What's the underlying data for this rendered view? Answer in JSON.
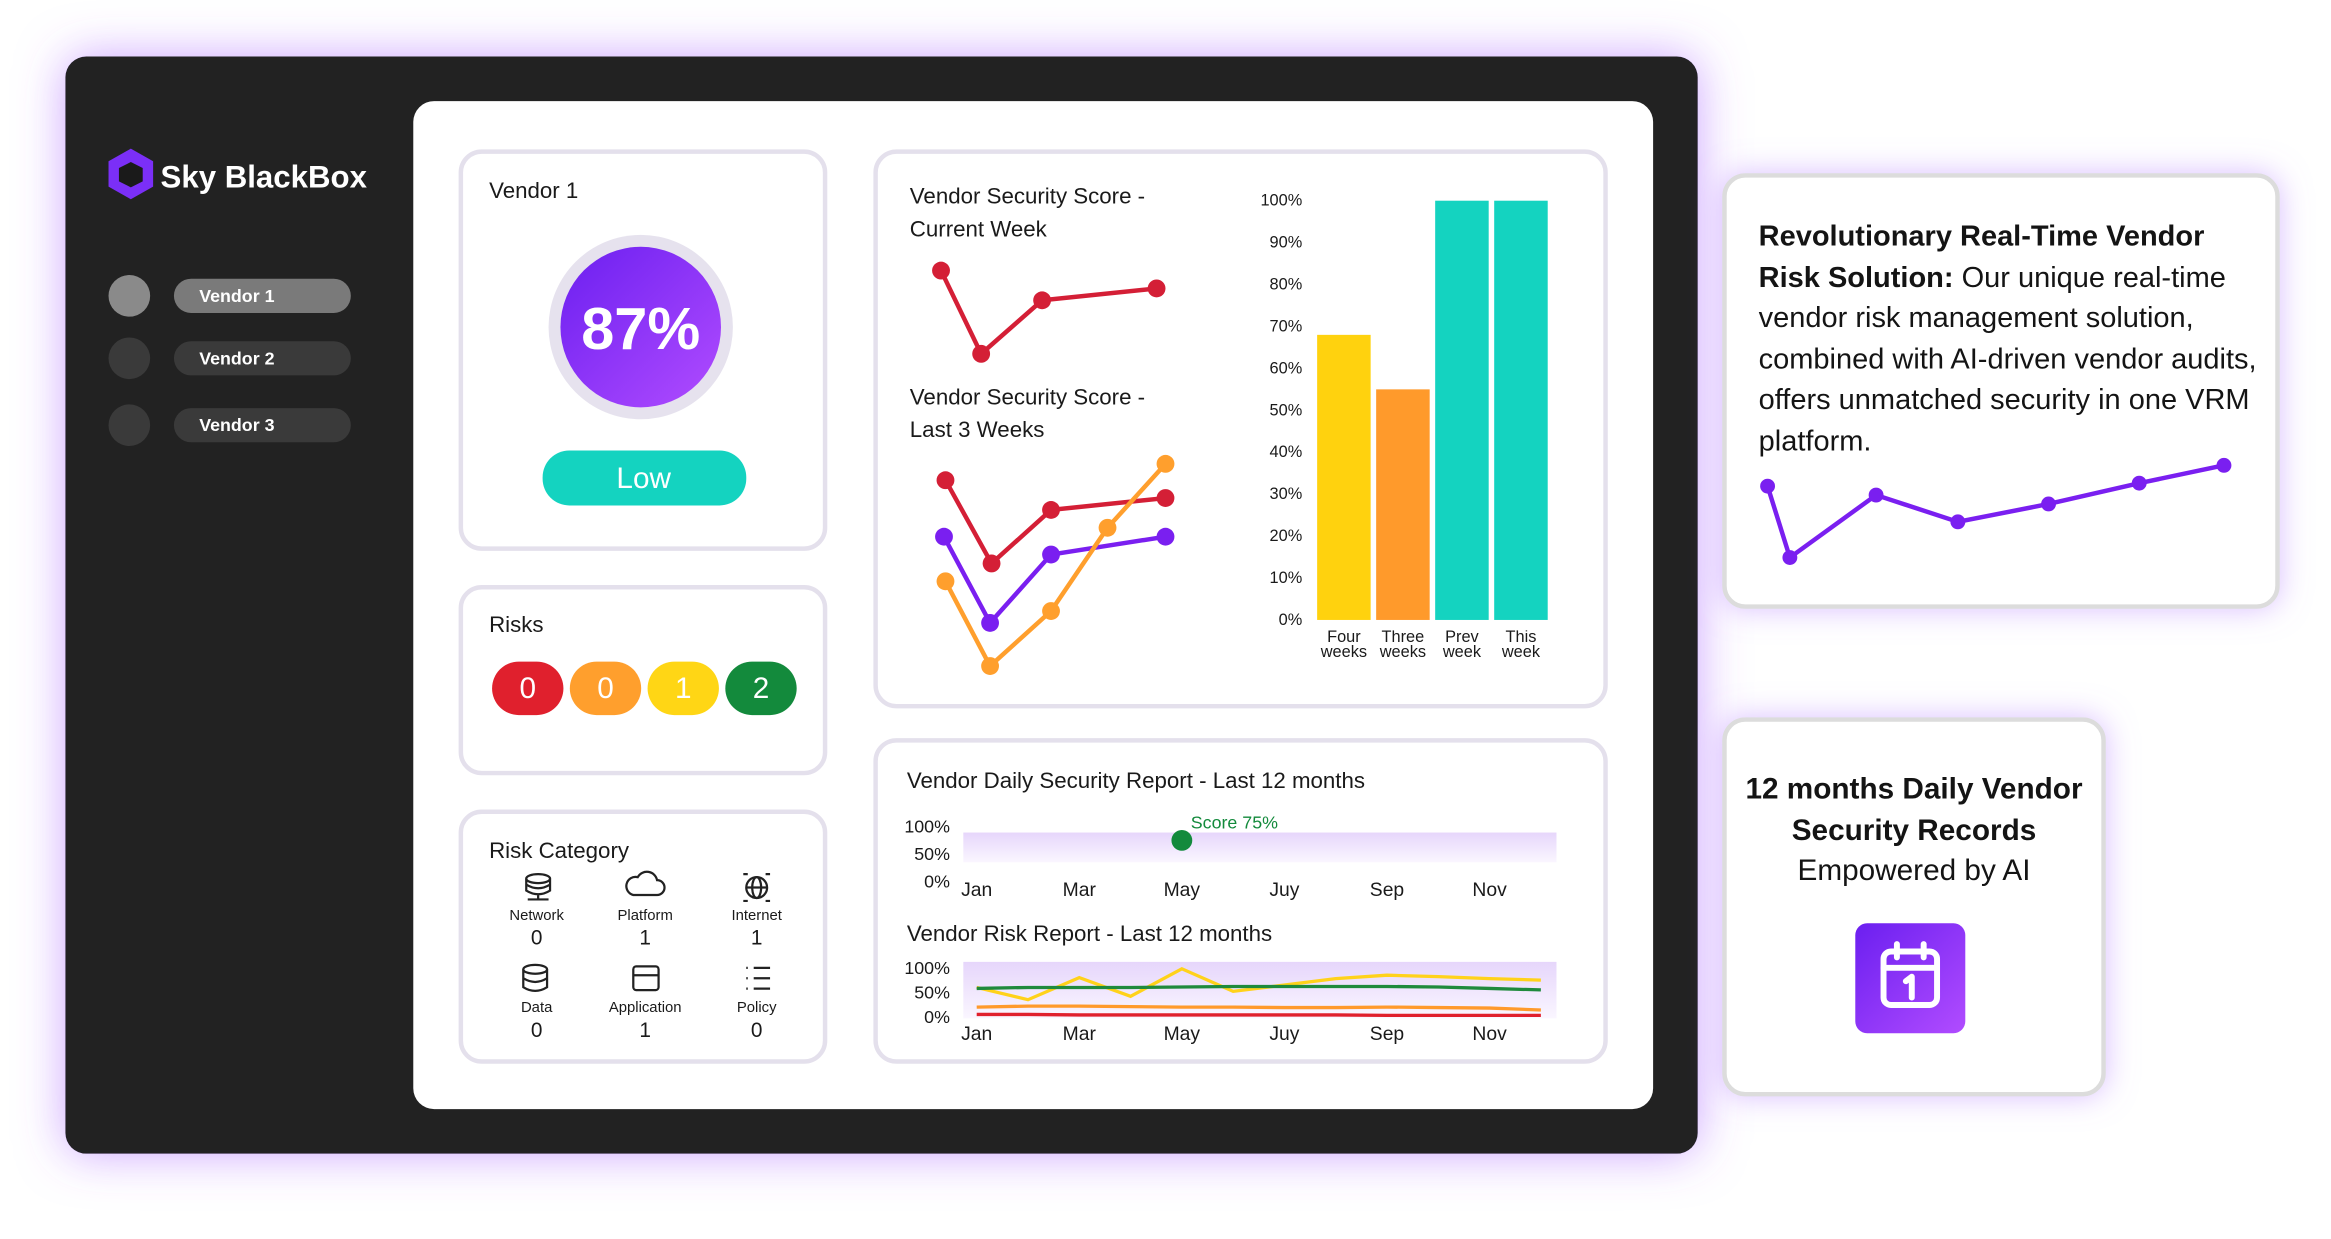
{
  "brand": "Sky BlackBox",
  "sidebar": [
    "Vendor 1",
    "Vendor 2",
    "Vendor 3"
  ],
  "vendor_card": {
    "title": "Vendor 1",
    "score": 87,
    "score_label": "87%",
    "rating": "Low"
  },
  "risks": {
    "title": "Risks",
    "counts": [
      0,
      0,
      1,
      2
    ],
    "colors": [
      "#e0202d",
      "#ff9f2d",
      "#ffd615",
      "#138a3c"
    ]
  },
  "risk_category": {
    "title": "Risk Category",
    "items": [
      {
        "label": "Network",
        "count": 0
      },
      {
        "label": "Platform",
        "count": 1
      },
      {
        "label": "Internet",
        "count": 1
      },
      {
        "label": "Data",
        "count": 0
      },
      {
        "label": "Application",
        "count": 1
      },
      {
        "label": "Policy",
        "count": 0
      }
    ]
  },
  "security_score": {
    "current_title": [
      "Vendor Security Score -",
      "Current Week"
    ],
    "three_weeks_title": [
      "Vendor Security Score -",
      "Last 3 Weeks"
    ],
    "chart": {
      "type": "bar",
      "categories": [
        "Four weeks",
        "Three weeks",
        "Prev week",
        "This week"
      ],
      "values": [
        68,
        55,
        100,
        100
      ],
      "colors": [
        "#ffd20e",
        "#ff9a2b",
        "#14d3c0",
        "#14d3c0"
      ],
      "ylim": [
        0,
        100
      ],
      "yticks": [
        {
          "value": 0,
          "label": "0%"
        },
        {
          "value": 10,
          "label": "10%"
        },
        {
          "value": 20,
          "label": "20%"
        },
        {
          "value": 30,
          "label": "30%"
        },
        {
          "value": 40,
          "label": "40%"
        },
        {
          "value": 50,
          "label": "50%"
        },
        {
          "value": 60,
          "label": "60%"
        },
        {
          "value": 70,
          "label": "70%"
        },
        {
          "value": 80,
          "label": "80%"
        },
        {
          "value": 90,
          "label": "90%"
        },
        {
          "value": 100,
          "label": "100%"
        }
      ]
    }
  },
  "daily_report": {
    "type": "line",
    "title": "Vendor Daily Security Report - Last 12 months",
    "categories": [
      "Jan",
      null,
      "Mar",
      null,
      "May",
      null,
      "Juy",
      null,
      "Sep",
      null,
      "Nov",
      null
    ],
    "ylim": [
      0,
      100
    ],
    "yticks": [
      {
        "value": 0,
        "label": "0%"
      },
      {
        "value": 50,
        "label": "50%"
      },
      {
        "value": 100,
        "label": "100%"
      }
    ],
    "annotation": {
      "label": "Score 75%",
      "value": 75,
      "category": "May",
      "color": "#138a3c"
    }
  },
  "risk_report": {
    "type": "line",
    "title": "Vendor Risk Report - Last 12 months",
    "categories": [
      "Jan",
      null,
      "Mar",
      null,
      "May",
      null,
      "Juy",
      null,
      "Sep",
      null,
      "Nov",
      null
    ],
    "ylim": [
      0,
      100
    ],
    "yticks": [
      {
        "value": 0,
        "label": "0%"
      },
      {
        "value": 50,
        "label": "50%"
      },
      {
        "value": 100,
        "label": "100%"
      }
    ],
    "series": [
      {
        "color": "#ffd21a",
        "values": [
          60,
          35,
          80,
          42,
          98,
          52,
          65,
          78,
          85,
          82,
          78,
          75
        ]
      },
      {
        "color": "#1f8a3c",
        "values": [
          58,
          60,
          60,
          60,
          61,
          62,
          62,
          62,
          62,
          61,
          58,
          55
        ]
      },
      {
        "color": "#ff9a2b",
        "values": [
          20,
          22,
          22,
          21,
          20,
          20,
          19,
          19,
          20,
          19,
          18,
          14
        ]
      },
      {
        "color": "#e0202d",
        "values": [
          5,
          5,
          4,
          4,
          4,
          4,
          4,
          4,
          3,
          3,
          3,
          3
        ]
      }
    ]
  },
  "promo": {
    "heading": "Revolutionary Real-Time Vendor Risk Solution:",
    "body": "Our unique real-time vendor risk management solution, combined with AI-driven vendor audits, offers unmatched security in one VRM platform."
  },
  "records": {
    "title": "12 months Daily Vendor Security Records",
    "subtitle": "Empowered by AI"
  }
}
